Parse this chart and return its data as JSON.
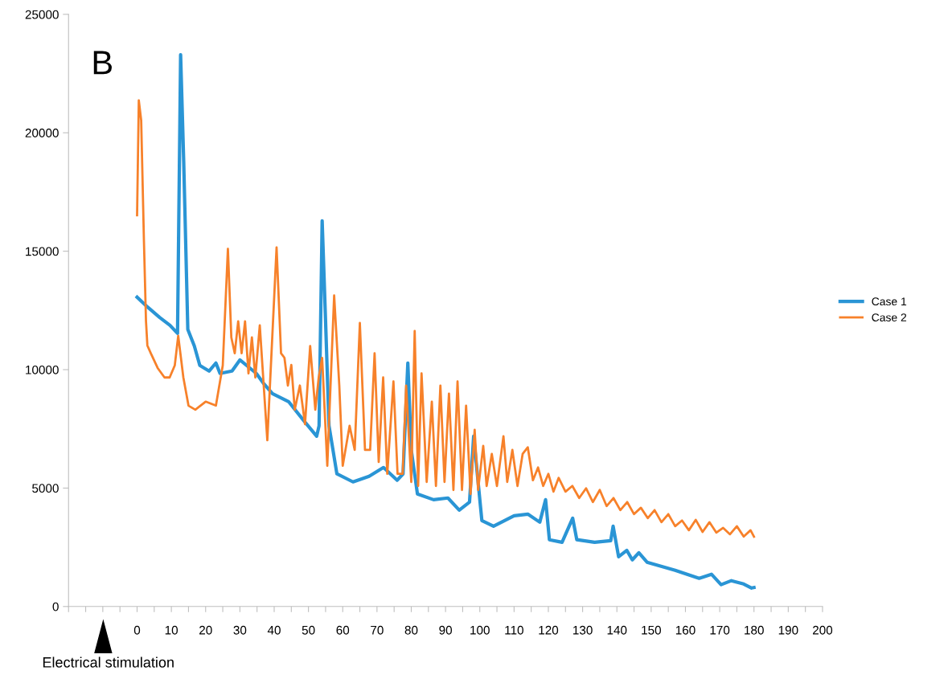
{
  "chart_data": {
    "type": "line",
    "annotations": [
      "B",
      "Electrical stimulation"
    ],
    "xlim": [
      -20,
      200
    ],
    "xticks": [
      {
        "value": -20,
        "label": null
      },
      {
        "value": -15,
        "label": null
      },
      {
        "value": -10,
        "label": null
      },
      {
        "value": -5,
        "label": null
      },
      0,
      {
        "value": 5,
        "label": null
      },
      10,
      {
        "value": 15,
        "label": null
      },
      20,
      {
        "value": 25,
        "label": null
      },
      30,
      {
        "value": 35,
        "label": null
      },
      40,
      {
        "value": 45,
        "label": null
      },
      50,
      {
        "value": 55,
        "label": null
      },
      60,
      {
        "value": 65,
        "label": null
      },
      70,
      {
        "value": 75,
        "label": null
      },
      80,
      {
        "value": 85,
        "label": null
      },
      90,
      {
        "value": 95,
        "label": null
      },
      100,
      {
        "value": 105,
        "label": null
      },
      110,
      {
        "value": 115,
        "label": null
      },
      120,
      {
        "value": 125,
        "label": null
      },
      130,
      {
        "value": 135,
        "label": null
      },
      140,
      {
        "value": 145,
        "label": null
      },
      150,
      {
        "value": 155,
        "label": null
      },
      160,
      {
        "value": 165,
        "label": null
      },
      170,
      {
        "value": 175,
        "label": null
      },
      180,
      {
        "value": 185,
        "label": null
      },
      190,
      {
        "value": 195,
        "label": null
      },
      200
    ],
    "ylim": [
      0,
      25000
    ],
    "yticks": [
      0,
      5000,
      10000,
      15000,
      20000,
      25000
    ],
    "grid": false,
    "legend": "right",
    "marker": "none",
    "line_style": "solid",
    "series": [
      {
        "name": "Case 1",
        "color": "#2a95d5",
        "x": [
          0,
          3,
          6.6,
          9.6,
          11.8,
          12.7,
          13.6,
          14.8,
          16.7,
          18.3,
          21,
          23,
          24.2,
          27.7,
          30,
          34.8,
          37,
          39.5,
          44.2,
          48.9,
          52.4,
          53.1,
          54,
          55,
          56,
          58.3,
          63,
          67.7,
          71.9,
          75.9,
          77.6,
          79,
          80,
          81.8,
          86.5,
          90.7,
          94,
          97,
          98.2,
          100.6,
          104,
          110,
          114,
          117.5,
          119.2,
          120.3,
          124,
          127.1,
          128.3,
          133.5,
          138.2,
          138.9,
          140.5,
          142.9,
          144.5,
          146.4,
          148.8,
          157,
          164,
          167.6,
          170.4,
          173.4,
          177,
          179.3,
          180
        ],
        "values": [
          13060,
          12650,
          12200,
          11870,
          11530,
          23300,
          18800,
          11700,
          11000,
          10180,
          9940,
          10280,
          9840,
          9940,
          10410,
          9840,
          9400,
          8990,
          8650,
          7800,
          7190,
          7630,
          16280,
          12040,
          7630,
          5600,
          5260,
          5500,
          5870,
          5330,
          5600,
          10280,
          6610,
          4750,
          4510,
          4580,
          4070,
          4410,
          7190,
          3630,
          3390,
          3830,
          3900,
          3560,
          4510,
          2820,
          2710,
          3730,
          2820,
          2710,
          2780,
          3390,
          2100,
          2370,
          1970,
          2270,
          1870,
          1530,
          1190,
          1360,
          920,
          1090,
          950,
          780,
          800
        ]
      },
      {
        "name": "Case 2",
        "color": "#f7812a",
        "x": [
          0,
          0.5,
          1.2,
          2,
          2.6,
          3,
          4,
          6,
          8,
          9.5,
          11,
          12,
          13.5,
          15,
          17,
          20,
          23,
          25,
          26.5,
          27.5,
          28.5,
          29.5,
          30.5,
          31.5,
          32.5,
          33.5,
          34.5,
          35.8,
          38,
          40.7,
          42,
          43,
          44,
          45,
          46,
          47.5,
          49,
          50.5,
          52,
          53,
          54,
          55.5,
          57.5,
          59,
          60,
          62,
          63.5,
          65,
          66.5,
          68,
          69.3,
          70.5,
          71.8,
          73,
          74.8,
          76,
          77.5,
          78.5,
          80,
          81,
          82,
          83,
          84.5,
          86,
          87.2,
          88.5,
          89.7,
          91,
          92.3,
          93.5,
          94.8,
          96,
          97.3,
          98.5,
          99.5,
          101,
          102,
          103.5,
          105,
          106.9,
          108,
          109.5,
          111,
          112.5,
          114,
          115.5,
          117,
          118.5,
          120,
          121.5,
          123,
          125,
          127,
          129,
          131,
          133,
          135,
          137,
          139,
          141,
          143,
          145,
          147,
          149,
          151,
          153,
          155,
          157,
          159,
          161,
          163,
          165,
          167,
          169,
          171,
          173,
          175,
          177,
          179,
          180
        ],
        "values": [
          16520,
          21370,
          20520,
          15430,
          12040,
          11020,
          10690,
          10070,
          9670,
          9670,
          10180,
          11430,
          9670,
          8480,
          8310,
          8650,
          8480,
          10180,
          15100,
          11360,
          10690,
          12040,
          10690,
          12040,
          9840,
          11360,
          9670,
          11870,
          7020,
          15160,
          10690,
          10500,
          9330,
          10200,
          8310,
          9330,
          7700,
          11000,
          8310,
          9670,
          10500,
          5940,
          13130,
          9330,
          5940,
          7630,
          6610,
          11970,
          6610,
          6610,
          10690,
          6100,
          9670,
          5600,
          9500,
          5600,
          5600,
          9330,
          5260,
          11630,
          5090,
          9840,
          5260,
          8650,
          5090,
          9330,
          5260,
          8990,
          4920,
          9500,
          4920,
          8480,
          4750,
          7460,
          4920,
          6780,
          5090,
          6440,
          5090,
          7190,
          5260,
          6610,
          5090,
          6440,
          6720,
          5330,
          5870,
          5090,
          5600,
          4850,
          5430,
          4850,
          5090,
          4580,
          4990,
          4410,
          4920,
          4240,
          4580,
          4070,
          4410,
          3900,
          4170,
          3730,
          4070,
          3560,
          3900,
          3390,
          3630,
          3220,
          3660,
          3150,
          3560,
          3120,
          3320,
          3050,
          3390,
          2950,
          3220,
          2950
        ]
      }
    ]
  }
}
